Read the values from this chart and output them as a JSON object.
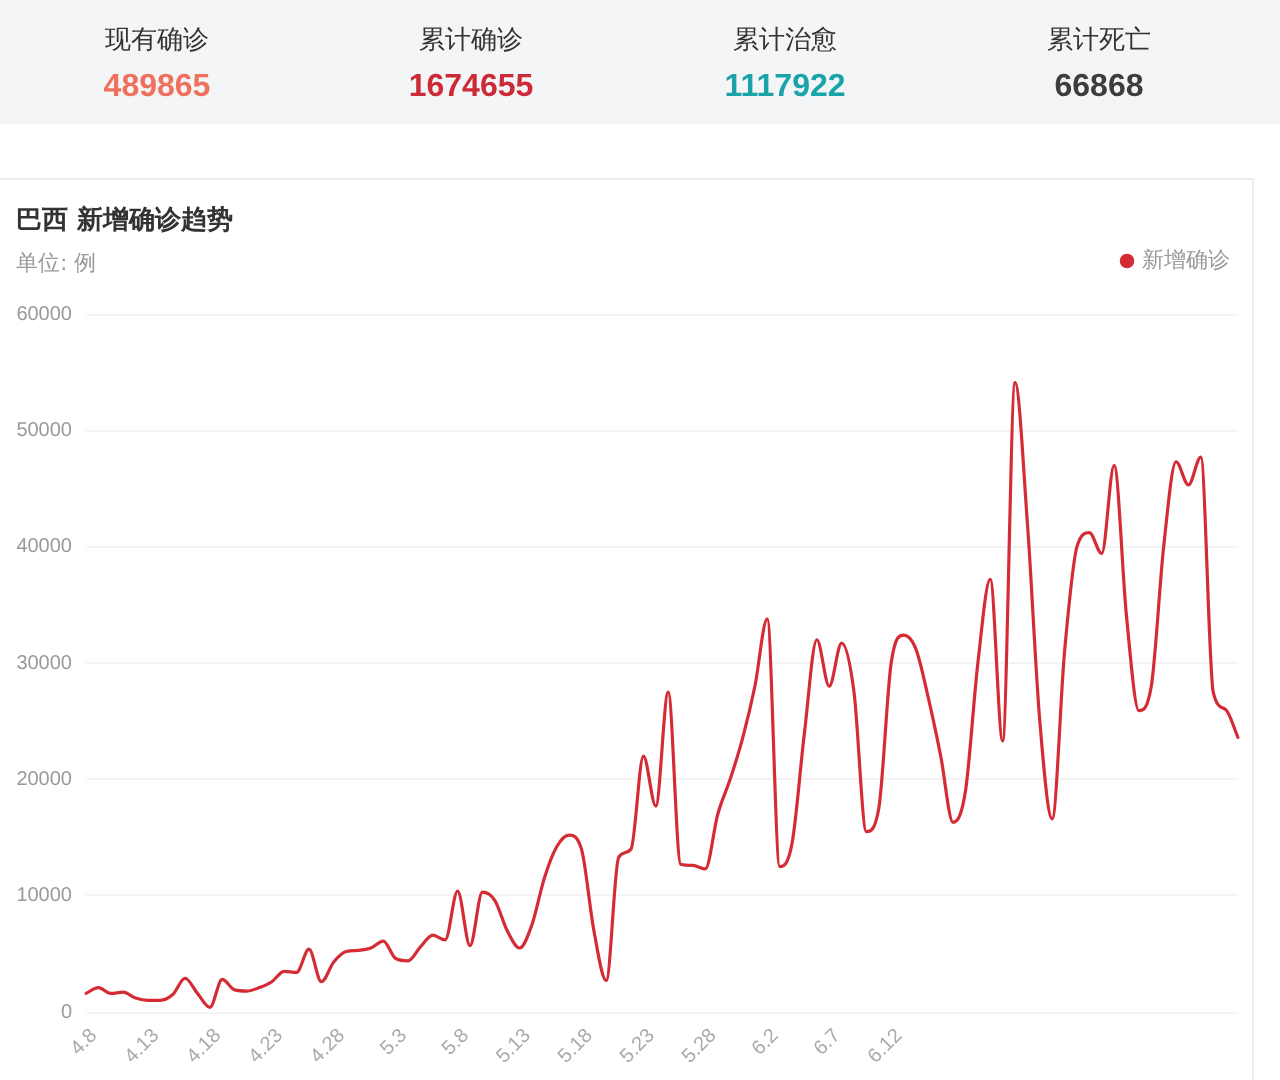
{
  "chart_data": [
    {
      "type": "other",
      "categories": [
        "现有确诊",
        "累计确诊",
        "累计治愈",
        "累计死亡"
      ],
      "values": [
        489865,
        1674655,
        1117922,
        66868
      ],
      "colors": [
        "#f0705e",
        "#cc2a36",
        "#1aa3a8",
        "#3d3d3d"
      ],
      "data_labels": true
    },
    {
      "type": "line",
      "title": "巴西 新增确诊趋势",
      "ylabel": "单位: 例",
      "categories": [
        "4.8",
        null,
        null,
        null,
        null,
        "4.13",
        null,
        null,
        null,
        null,
        "4.18",
        null,
        null,
        null,
        null,
        "4.23",
        null,
        null,
        null,
        null,
        "4.28",
        null,
        null,
        null,
        null,
        "5.3",
        null,
        null,
        null,
        null,
        "5.8",
        null,
        null,
        null,
        null,
        "5.13",
        null,
        null,
        null,
        null,
        "5.18",
        null,
        null,
        null,
        null,
        "5.23",
        null,
        null,
        null,
        null,
        "5.28",
        null,
        null,
        null,
        null,
        "6.2",
        null,
        null,
        null,
        null,
        "6.7",
        null,
        null,
        null,
        null,
        "6.12",
        null,
        null,
        null,
        null,
        null,
        null,
        null,
        null,
        null,
        null,
        null,
        null,
        null,
        null,
        null,
        null,
        null,
        null,
        null,
        null,
        null,
        null,
        null,
        null,
        null,
        null,
        null,
        null
      ],
      "series": [
        {
          "name": "新增确诊",
          "color": "#d42b34",
          "values": [
            1600,
            2100,
            1600,
            1700,
            1200,
            1000,
            1000,
            1500,
            2900,
            1600,
            400,
            2800,
            1900,
            1800,
            2100,
            2600,
            3500,
            3400,
            5400,
            2600,
            4300,
            5200,
            5300,
            5500,
            6100,
            4600,
            4400,
            5600,
            6600,
            6200,
            10400,
            5700,
            10300,
            9600,
            7000,
            5500,
            7500,
            11500,
            14200,
            15200,
            14000,
            7000,
            2700,
            13300,
            14000,
            22000,
            17700,
            27500,
            12700,
            12600,
            12300,
            17000,
            20000,
            23500,
            28000,
            33800,
            12500,
            14500,
            24000,
            32000,
            28000,
            31700,
            27500,
            15500,
            17500,
            30000,
            32400,
            31200,
            27000,
            22000,
            16300,
            19000,
            30000,
            37200,
            23300,
            54100,
            42000,
            25000,
            16600,
            31000,
            40000,
            41200,
            39400,
            47000,
            34000,
            25900,
            28000,
            40000,
            47300,
            45300,
            47700,
            27500,
            26000,
            23600
          ]
        }
      ],
      "ylim": [
        0,
        60000
      ],
      "yticks": [
        0,
        10000,
        20000,
        30000,
        40000,
        50000,
        60000
      ],
      "grid": "y",
      "legend": "top right",
      "marker": "none"
    }
  ]
}
